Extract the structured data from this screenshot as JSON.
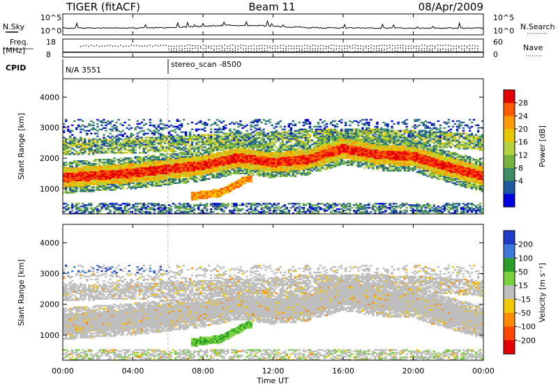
{
  "header": {
    "radar": "TIGER (fitACF)",
    "beam": "Beam 11",
    "date": "08/Apr/2009"
  },
  "aux_panels": {
    "nsky_label": "N.Sky",
    "nsearch_label": "N.Search",
    "noise_ticks": [
      "10^5",
      "10^0"
    ],
    "freq_label_1": "Freq.",
    "freq_label_2": "[MHz]",
    "freq_ticks": [
      "18",
      "8"
    ],
    "nave_label": "Nave",
    "nave_ticks": [
      "60",
      "0"
    ],
    "cpid_label": "CPID",
    "cpid_segments": [
      {
        "name": "N/A 3551",
        "start_hour": 0,
        "end_hour": 6
      },
      {
        "name": "stereo_scan -8500",
        "start_hour": 6,
        "end_hour": 24
      }
    ]
  },
  "panels": {
    "power": {
      "ylabel": "Slant Range [km]",
      "colorbar_label": "Power [dB]",
      "colorbar_ticks": [
        "28",
        "24",
        "20",
        "16",
        "12",
        "8",
        "4"
      ],
      "colors": [
        "#e60000",
        "#ff5a00",
        "#ff9a00",
        "#e8c800",
        "#b4d23c",
        "#78b43c",
        "#3c8c64",
        "#1e5aa0",
        "#0000e6"
      ]
    },
    "velocity": {
      "ylabel": "Slant Range [km]",
      "colorbar_label": "Velocity [m s⁻¹]",
      "colorbar_ticks": [
        "200",
        "100",
        "50",
        "15",
        "-15",
        "-50",
        "-100",
        "-200"
      ],
      "colors": [
        "#1e3cc8",
        "#3c78dc",
        "#28a028",
        "#78d23c",
        "#bebebe",
        "#f0c800",
        "#ff8c00",
        "#ff4600",
        "#e60000"
      ]
    }
  },
  "chart_data": {
    "type": "heatmap",
    "x": {
      "label": "Time UT",
      "range_hours": [
        0,
        24
      ],
      "tick_hours": [
        0,
        4,
        8,
        12,
        16,
        20,
        24
      ],
      "tick_labels": [
        "00:00",
        "04:00",
        "08:00",
        "12:00",
        "16:00",
        "20:00",
        "00:00"
      ]
    },
    "y": {
      "label": "Slant Range [km]",
      "range_km": [
        180,
        4600
      ],
      "ticks": [
        "1000",
        "2000",
        "3000",
        "4000"
      ],
      "tick_values": [
        1000,
        2000,
        3000,
        4000
      ]
    },
    "power_db": {
      "range": [
        0,
        30
      ]
    },
    "velocity_ms": {
      "range": [
        -250,
        250
      ]
    },
    "echo_bands": [
      {
        "feature": "main F-region band",
        "range_km_at_hours": [
          [
            0,
            1350
          ],
          [
            4,
            1500
          ],
          [
            8,
            1750
          ],
          [
            10,
            2000
          ],
          [
            12,
            1850
          ],
          [
            14,
            1950
          ],
          [
            16,
            2300
          ],
          [
            18,
            2100
          ],
          [
            20,
            2050
          ],
          [
            22,
            1700
          ],
          [
            24,
            1400
          ]
        ]
      },
      {
        "feature": "upper band",
        "range_km_at_hours": [
          [
            0,
            2350
          ],
          [
            4,
            2400
          ],
          [
            8,
            2500
          ],
          [
            12,
            2600
          ],
          [
            16,
            2700
          ],
          [
            20,
            2650
          ],
          [
            24,
            2500
          ]
        ]
      },
      {
        "feature": "low-range feature",
        "range_km_at_hours": [
          [
            7.5,
            750
          ],
          [
            9,
            850
          ],
          [
            10.5,
            1300
          ]
        ]
      }
    ]
  }
}
